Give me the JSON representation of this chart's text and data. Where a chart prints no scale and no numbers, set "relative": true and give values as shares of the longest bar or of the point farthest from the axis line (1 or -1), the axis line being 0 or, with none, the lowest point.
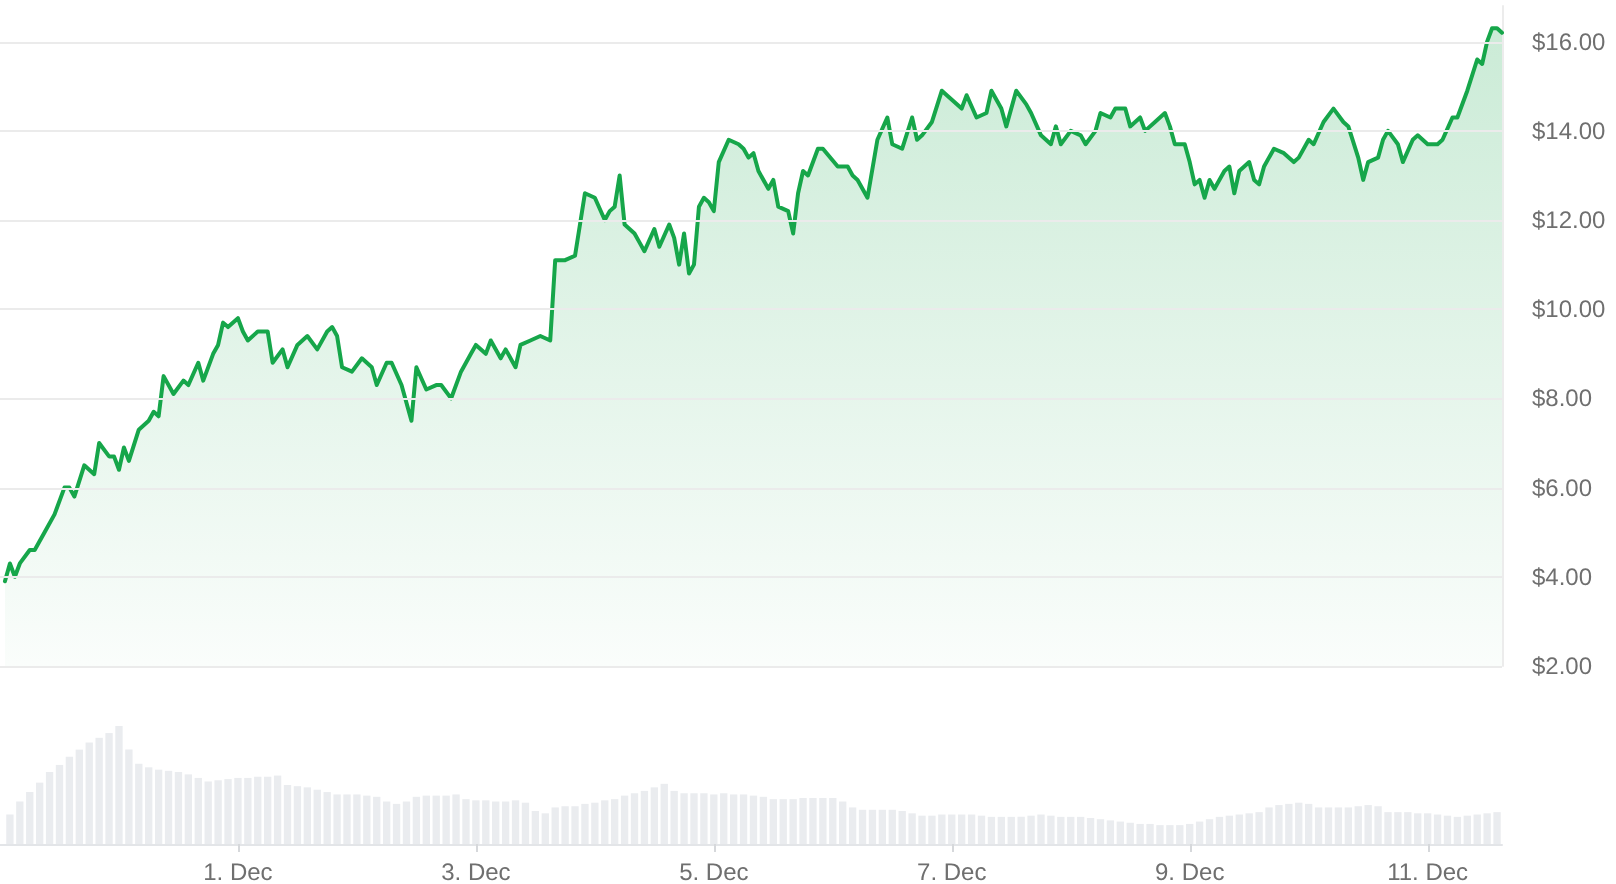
{
  "chart_data": [
    {
      "type": "area",
      "color": "#16a64a",
      "grid": "y",
      "tick_labels": "y",
      "xlim": [
        "--11-29T00:00",
        "--12-11T15:00"
      ],
      "ylim": [
        2,
        16.8
      ],
      "yticks": [
        {
          "value": 2,
          "label": "$2.00"
        },
        {
          "value": 4,
          "label": "$4.00"
        },
        {
          "value": 6,
          "label": "$6.00"
        },
        {
          "value": 8,
          "label": "$8.00"
        },
        {
          "value": 10,
          "label": "$10.00"
        },
        {
          "value": 12,
          "label": "$12.00"
        },
        {
          "value": 14,
          "label": "$14.00"
        },
        {
          "value": 16,
          "label": "$16.00"
        }
      ],
      "x": [
        "--11-29T01:00",
        "--11-29T02:00",
        "--11-29T03:00",
        "--11-29T04:00",
        "--11-29T06:00",
        "--11-29T07:00",
        "--11-29T09:00",
        "--11-29T11:00",
        "--11-29T13:00",
        "--11-29T14:00",
        "--11-29T15:00",
        "--11-29T17:00",
        "--11-29T19:00",
        "--11-29T20:00",
        "--11-29T22:00",
        "--11-29T23:00",
        "--11-30T00:00",
        "--11-30T01:00",
        "--11-30T02:00",
        "--11-30T04:00",
        "--11-30T06:00",
        "--11-30T07:00",
        "--11-30T08:00",
        "--11-30T09:00",
        "--11-30T11:00",
        "--11-30T13:00",
        "--11-30T14:00",
        "--11-30T16:00",
        "--11-30T17:00",
        "--11-30T19:00",
        "--11-30T20:00",
        "--11-30T21:00",
        "--11-30T22:00",
        "--12-01T00:00",
        "--12-01T01:00",
        "--12-01T02:00",
        "--12-01T04:00",
        "--12-01T06:00",
        "--12-01T07:00",
        "--12-01T09:00",
        "--12-01T10:00",
        "--12-01T12:00",
        "--12-01T14:00",
        "--12-01T16:00",
        "--12-01T18:00",
        "--12-01T19:00",
        "--12-01T20:00",
        "--12-01T21:00",
        "--12-01T23:00",
        "--12-02T01:00",
        "--12-02T03:00",
        "--12-02T04:00",
        "--12-02T06:00",
        "--12-02T07:00",
        "--12-02T09:00",
        "--12-02T11:00",
        "--12-02T12:00",
        "--12-02T14:00",
        "--12-02T16:00",
        "--12-02T17:00",
        "--12-02T19:00",
        "--12-02T21:00",
        "--12-02T23:00",
        "--12-03T00:00",
        "--12-03T02:00",
        "--12-03T03:00",
        "--12-03T05:00",
        "--12-03T06:00",
        "--12-03T08:00",
        "--12-03T09:00",
        "--12-03T11:00",
        "--12-03T13:00",
        "--12-03T15:00",
        "--12-03T16:00",
        "--12-03T18:00",
        "--12-03T20:00",
        "--12-03T21:00",
        "--12-03T22:00",
        "--12-04T00:00",
        "--12-04T02:00",
        "--12-04T03:00",
        "--12-04T04:00",
        "--12-04T05:00",
        "--12-04T06:00",
        "--12-04T08:00",
        "--12-04T09:00",
        "--12-04T10:00",
        "--12-04T12:00",
        "--12-04T13:00",
        "--12-04T15:00",
        "--12-04T16:00",
        "--12-04T17:00",
        "--12-04T18:00",
        "--12-04T19:00",
        "--12-04T20:00",
        "--12-04T21:00",
        "--12-04T22:00",
        "--12-04T23:00",
        "--12-05T00:00",
        "--12-05T01:00",
        "--12-05T03:00",
        "--12-05T05:00",
        "--12-05T06:00",
        "--12-05T07:00",
        "--12-05T08:00",
        "--12-05T09:00",
        "--12-05T11:00",
        "--12-05T12:00",
        "--12-05T13:00",
        "--12-05T15:00",
        "--12-05T16:00",
        "--12-05T17:00",
        "--12-05T18:00",
        "--12-05T19:00",
        "--12-05T21:00",
        "--12-05T22:00",
        "--12-06T01:00",
        "--12-06T03:00",
        "--12-06T04:00",
        "--12-06T05:00",
        "--12-06T07:00",
        "--12-06T09:00",
        "--12-06T11:00",
        "--12-06T12:00",
        "--12-06T14:00",
        "--12-06T16:00",
        "--12-06T17:00",
        "--12-06T18:00",
        "--12-06T20:00",
        "--12-06T22:00",
        "--12-06T23:00",
        "--12-07T02:00",
        "--12-07T03:00",
        "--12-07T05:00",
        "--12-07T07:00",
        "--12-07T08:00",
        "--12-07T10:00",
        "--12-07T11:00",
        "--12-07T13:00",
        "--12-07T15:00",
        "--12-07T16:00",
        "--12-07T18:00",
        "--12-07T20:00",
        "--12-07T21:00",
        "--12-07T22:00",
        "--12-08T00:00",
        "--12-08T02:00",
        "--12-08T03:00",
        "--12-08T05:00",
        "--12-08T06:00",
        "--12-08T08:00",
        "--12-08T09:00",
        "--12-08T11:00",
        "--12-08T12:00",
        "--12-08T14:00",
        "--12-08T15:00",
        "--12-08T17:00",
        "--12-08T19:00",
        "--12-08T20:00",
        "--12-08T21:00",
        "--12-08T23:00",
        "--12-09T00:00",
        "--12-09T01:00",
        "--12-09T02:00",
        "--12-09T03:00",
        "--12-09T04:00",
        "--12-09T05:00",
        "--12-09T07:00",
        "--12-09T08:00",
        "--12-09T09:00",
        "--12-09T10:00",
        "--12-09T12:00",
        "--12-09T13:00",
        "--12-09T14:00",
        "--12-09T15:00",
        "--12-09T17:00",
        "--12-09T19:00",
        "--12-09T21:00",
        "--12-09T22:00",
        "--12-10T00:00",
        "--12-10T01:00",
        "--12-10T03:00",
        "--12-10T05:00",
        "--12-10T07:00",
        "--12-10T08:00",
        "--12-10T10:00",
        "--12-10T11:00",
        "--12-10T12:00",
        "--12-10T14:00",
        "--12-10T15:00",
        "--12-10T16:00",
        "--12-10T18:00",
        "--12-10T19:00",
        "--12-10T21:00",
        "--12-10T22:00",
        "--12-11T00:00",
        "--12-11T02:00",
        "--12-11T03:00",
        "--12-11T05:00",
        "--12-11T06:00",
        "--12-11T08:00",
        "--12-11T10:00",
        "--12-11T11:00",
        "--12-11T12:00",
        "--12-11T13:00",
        "--12-11T14:00",
        "--12-11T15:00"
      ],
      "values": [
        3.9,
        4.3,
        4.0,
        4.3,
        4.6,
        4.6,
        5.0,
        5.4,
        6.0,
        6.0,
        5.8,
        6.5,
        6.3,
        7.0,
        6.7,
        6.7,
        6.4,
        6.9,
        6.6,
        7.3,
        7.5,
        7.7,
        7.6,
        8.5,
        8.1,
        8.4,
        8.3,
        8.8,
        8.4,
        9.0,
        9.2,
        9.7,
        9.6,
        9.8,
        9.5,
        9.3,
        9.5,
        9.5,
        8.8,
        9.1,
        8.7,
        9.2,
        9.4,
        9.1,
        9.5,
        9.6,
        9.4,
        8.7,
        8.6,
        8.9,
        8.7,
        8.3,
        8.8,
        8.8,
        8.3,
        7.5,
        8.7,
        8.2,
        8.3,
        8.3,
        8.0,
        8.6,
        9.0,
        9.2,
        9.0,
        9.3,
        8.9,
        9.1,
        8.7,
        9.2,
        9.3,
        9.4,
        9.3,
        11.1,
        11.1,
        11.2,
        11.9,
        12.6,
        12.5,
        12.0,
        12.2,
        12.3,
        13.0,
        11.9,
        11.7,
        11.5,
        11.3,
        11.8,
        11.4,
        11.9,
        11.6,
        11.0,
        11.7,
        10.8,
        11.0,
        12.3,
        12.5,
        12.4,
        12.2,
        13.3,
        13.8,
        13.7,
        13.6,
        13.4,
        13.5,
        13.1,
        12.7,
        12.9,
        12.3,
        12.2,
        11.7,
        12.6,
        13.1,
        13.0,
        13.6,
        13.6,
        13.2,
        13.2,
        13.0,
        12.9,
        12.5,
        13.8,
        14.3,
        13.7,
        13.6,
        14.3,
        13.8,
        13.9,
        14.2,
        14.9,
        14.8,
        14.5,
        14.8,
        14.3,
        14.4,
        14.9,
        14.5,
        14.1,
        14.9,
        14.6,
        14.4,
        13.9,
        13.7,
        14.1,
        13.7,
        14.0,
        13.9,
        13.7,
        14.0,
        14.4,
        14.3,
        14.5,
        14.5,
        14.1,
        14.3,
        14.0,
        14.2,
        14.4,
        14.1,
        13.7,
        13.7,
        13.3,
        12.8,
        12.9,
        12.5,
        12.9,
        12.7,
        13.1,
        13.2,
        12.6,
        13.1,
        13.3,
        12.9,
        12.8,
        13.2,
        13.6,
        13.5,
        13.3,
        13.4,
        13.8,
        13.7,
        14.2,
        14.5,
        14.2,
        14.1,
        13.4,
        12.9,
        13.3,
        13.4,
        13.8,
        14.0,
        13.7,
        13.3,
        13.8,
        13.9,
        13.7,
        13.7,
        13.8,
        14.3,
        14.3,
        14.9,
        15.6,
        15.5,
        16.0,
        16.3,
        16.3,
        16.2
      ]
    },
    {
      "type": "bar",
      "color": "#eaecef",
      "relative": true,
      "tick_labels": "x",
      "xlim": [
        "--11-29T00:00",
        "--12-11T15:00"
      ],
      "xticks": [
        {
          "value": "--12-01",
          "label": "1. Dec"
        },
        {
          "value": "--12-03",
          "label": "3. Dec"
        },
        {
          "value": "--12-05",
          "label": "5. Dec"
        },
        {
          "value": "--12-07",
          "label": "7. Dec"
        },
        {
          "value": "--12-09",
          "label": "9. Dec"
        },
        {
          "value": "--12-11",
          "label": "11. Dec"
        }
      ],
      "x": [
        "--11-29T02:00",
        "--11-29T04:00",
        "--11-29T06:00",
        "--11-29T08:00",
        "--11-29T10:00",
        "--11-29T12:00",
        "--11-29T14:00",
        "--11-29T16:00",
        "--11-29T18:00",
        "--11-29T20:00",
        "--11-29T22:00",
        "--11-30T00:00",
        "--11-30T02:00",
        "--11-30T04:00",
        "--11-30T06:00",
        "--11-30T08:00",
        "--11-30T10:00",
        "--11-30T12:00",
        "--11-30T14:00",
        "--11-30T16:00",
        "--11-30T18:00",
        "--11-30T20:00",
        "--11-30T22:00",
        "--12-01T00:00",
        "--12-01T02:00",
        "--12-01T04:00",
        "--12-01T06:00",
        "--12-01T08:00",
        "--12-01T10:00",
        "--12-01T12:00",
        "--12-01T14:00",
        "--12-01T16:00",
        "--12-01T18:00",
        "--12-01T20:00",
        "--12-01T22:00",
        "--12-02T00:00",
        "--12-02T02:00",
        "--12-02T04:00",
        "--12-02T06:00",
        "--12-02T08:00",
        "--12-02T10:00",
        "--12-02T12:00",
        "--12-02T14:00",
        "--12-02T16:00",
        "--12-02T18:00",
        "--12-02T20:00",
        "--12-02T22:00",
        "--12-03T00:00",
        "--12-03T02:00",
        "--12-03T04:00",
        "--12-03T06:00",
        "--12-03T08:00",
        "--12-03T10:00",
        "--12-03T12:00",
        "--12-03T14:00",
        "--12-03T16:00",
        "--12-03T18:00",
        "--12-03T20:00",
        "--12-03T22:00",
        "--12-04T00:00",
        "--12-04T02:00",
        "--12-04T04:00",
        "--12-04T06:00",
        "--12-04T08:00",
        "--12-04T10:00",
        "--12-04T12:00",
        "--12-04T14:00",
        "--12-04T16:00",
        "--12-04T18:00",
        "--12-04T20:00",
        "--12-04T22:00",
        "--12-05T00:00",
        "--12-05T02:00",
        "--12-05T04:00",
        "--12-05T06:00",
        "--12-05T08:00",
        "--12-05T10:00",
        "--12-05T12:00",
        "--12-05T14:00",
        "--12-05T16:00",
        "--12-05T18:00",
        "--12-05T20:00",
        "--12-05T22:00",
        "--12-06T00:00",
        "--12-06T02:00",
        "--12-06T04:00",
        "--12-06T06:00",
        "--12-06T08:00",
        "--12-06T10:00",
        "--12-06T12:00",
        "--12-06T14:00",
        "--12-06T16:00",
        "--12-06T18:00",
        "--12-06T20:00",
        "--12-06T22:00",
        "--12-07T00:00",
        "--12-07T02:00",
        "--12-07T04:00",
        "--12-07T06:00",
        "--12-07T08:00",
        "--12-07T10:00",
        "--12-07T12:00",
        "--12-07T14:00",
        "--12-07T16:00",
        "--12-07T18:00",
        "--12-07T20:00",
        "--12-07T22:00",
        "--12-08T00:00",
        "--12-08T02:00",
        "--12-08T04:00",
        "--12-08T06:00",
        "--12-08T08:00",
        "--12-08T10:00",
        "--12-08T12:00",
        "--12-08T14:00",
        "--12-08T16:00",
        "--12-08T18:00",
        "--12-08T20:00",
        "--12-08T22:00",
        "--12-09T00:00",
        "--12-09T02:00",
        "--12-09T04:00",
        "--12-09T06:00",
        "--12-09T08:00",
        "--12-09T10:00",
        "--12-09T12:00",
        "--12-09T14:00",
        "--12-09T16:00",
        "--12-09T18:00",
        "--12-09T20:00",
        "--12-09T22:00",
        "--12-10T00:00",
        "--12-10T02:00",
        "--12-10T04:00",
        "--12-10T06:00",
        "--12-10T08:00",
        "--12-10T10:00",
        "--12-10T12:00",
        "--12-10T14:00",
        "--12-10T16:00",
        "--12-10T18:00",
        "--12-10T20:00",
        "--12-10T22:00",
        "--12-11T00:00",
        "--12-11T02:00",
        "--12-11T04:00",
        "--12-11T06:00",
        "--12-11T08:00",
        "--12-11T10:00",
        "--12-11T12:00",
        "--12-11T14:00"
      ],
      "values": [
        0.25,
        0.36,
        0.44,
        0.52,
        0.61,
        0.67,
        0.74,
        0.8,
        0.86,
        0.9,
        0.94,
        1.0,
        0.8,
        0.68,
        0.65,
        0.63,
        0.62,
        0.61,
        0.59,
        0.56,
        0.53,
        0.54,
        0.55,
        0.56,
        0.56,
        0.57,
        0.57,
        0.58,
        0.5,
        0.49,
        0.48,
        0.46,
        0.44,
        0.42,
        0.42,
        0.42,
        0.41,
        0.4,
        0.36,
        0.34,
        0.36,
        0.4,
        0.41,
        0.41,
        0.41,
        0.42,
        0.38,
        0.37,
        0.37,
        0.36,
        0.36,
        0.37,
        0.35,
        0.28,
        0.26,
        0.31,
        0.32,
        0.32,
        0.34,
        0.35,
        0.37,
        0.38,
        0.41,
        0.43,
        0.45,
        0.48,
        0.51,
        0.45,
        0.43,
        0.43,
        0.43,
        0.42,
        0.43,
        0.42,
        0.42,
        0.41,
        0.4,
        0.38,
        0.38,
        0.38,
        0.39,
        0.39,
        0.39,
        0.39,
        0.36,
        0.31,
        0.29,
        0.29,
        0.29,
        0.29,
        0.28,
        0.26,
        0.24,
        0.24,
        0.25,
        0.25,
        0.25,
        0.25,
        0.24,
        0.23,
        0.23,
        0.23,
        0.23,
        0.24,
        0.25,
        0.24,
        0.23,
        0.23,
        0.23,
        0.22,
        0.21,
        0.2,
        0.19,
        0.18,
        0.17,
        0.17,
        0.16,
        0.16,
        0.16,
        0.17,
        0.19,
        0.21,
        0.23,
        0.24,
        0.25,
        0.26,
        0.27,
        0.31,
        0.33,
        0.34,
        0.35,
        0.34,
        0.31,
        0.31,
        0.31,
        0.31,
        0.32,
        0.33,
        0.32,
        0.27,
        0.27,
        0.27,
        0.26,
        0.26,
        0.25,
        0.24,
        0.23,
        0.24,
        0.25,
        0.26,
        0.27
      ]
    }
  ]
}
